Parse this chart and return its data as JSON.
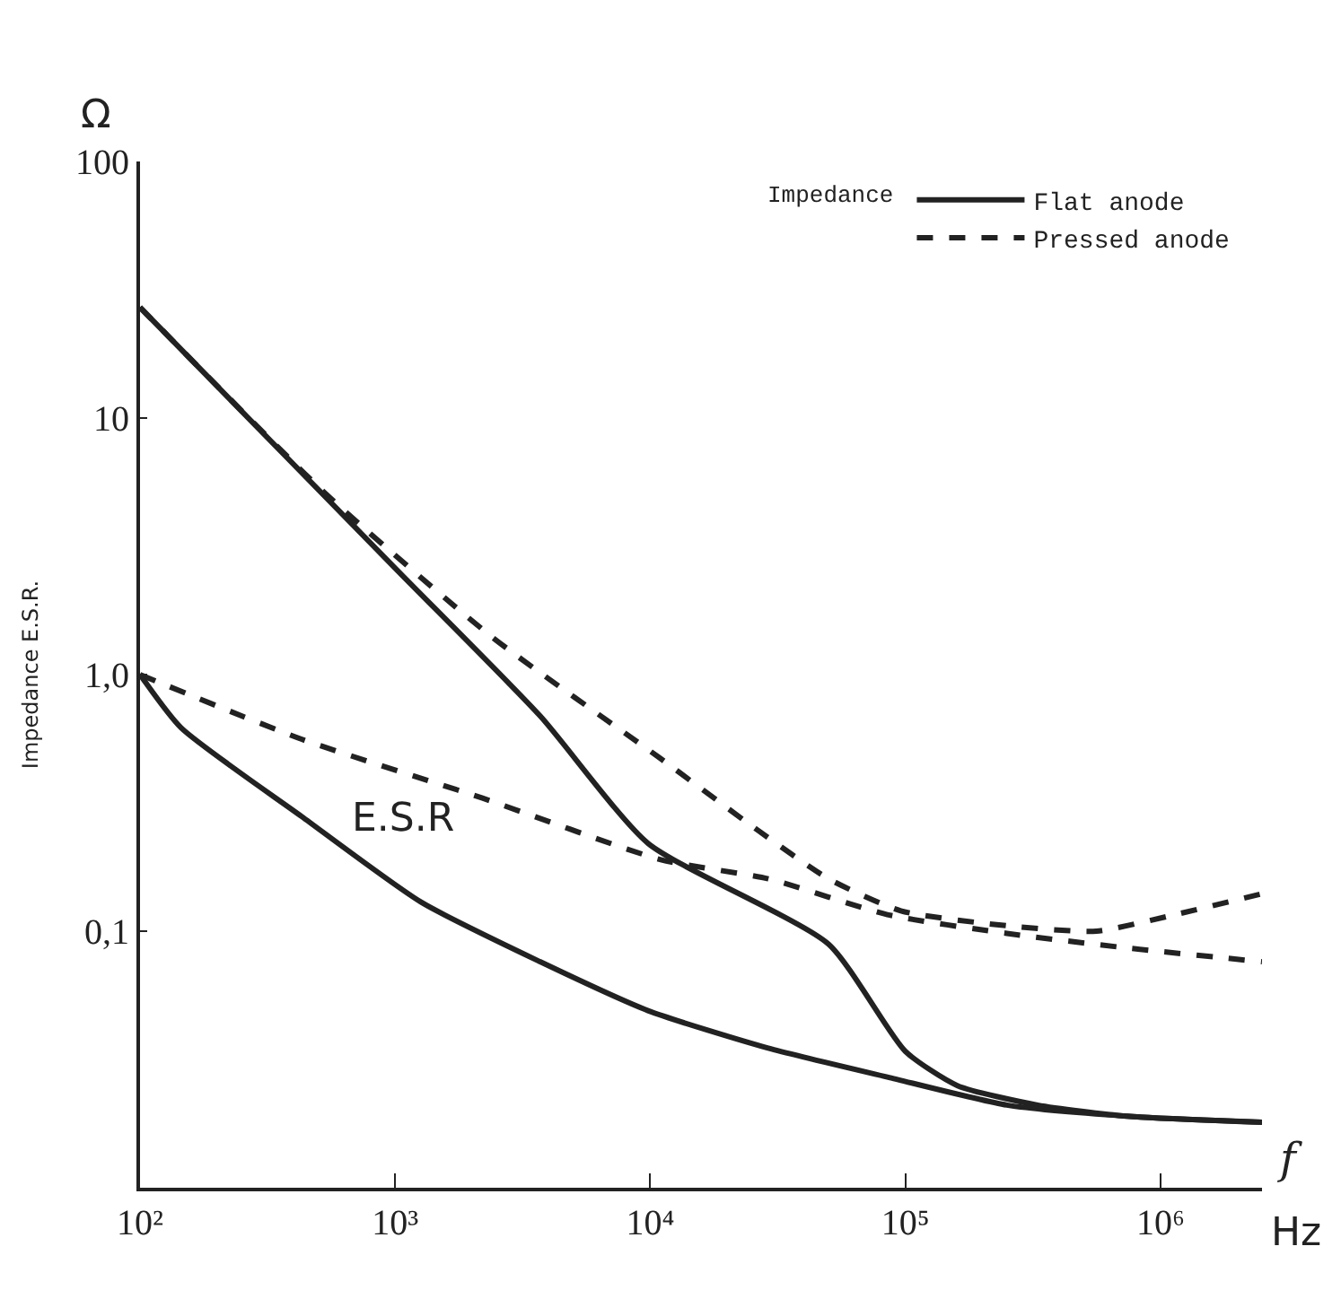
{
  "chart_data": {
    "type": "line",
    "xlabel": "f",
    "ylabel": "Impedance E.S.R.",
    "legend_title": "Impedance",
    "log": "xy",
    "legend": "top right",
    "xlim": [
      100,
      2500000
    ],
    "ylim": [
      0.01,
      100
    ],
    "xticks": [
      {
        "value": 100,
        "label": "10²"
      },
      {
        "value": 1000,
        "label": "10³"
      },
      {
        "value": 10000,
        "label": "10⁴"
      },
      {
        "value": 100000,
        "label": "10⁵"
      },
      {
        "value": 1000000,
        "label": "10⁶"
      }
    ],
    "yticks": [
      100,
      10,
      {
        "value": 1,
        "label": "1,0"
      },
      {
        "value": 0.1,
        "label": "0,1"
      }
    ],
    "series": [
      {
        "name": "Flat anode",
        "color": "#222222",
        "line_style": "solid",
        "x": [
          100,
          1000,
          3700,
          9800,
          50000,
          100000,
          160000,
          330000,
          740000,
          2500000
        ],
        "values": [
          27,
          2.6,
          0.69,
          0.22,
          0.089,
          0.034,
          0.025,
          0.021,
          0.019,
          0.018
        ]
      },
      {
        "name": "Pressed anode",
        "color": "#222222",
        "line_style": "dashed",
        "x": [
          100,
          531,
          2400,
          11000,
          26000,
          50000,
          96000,
          250000,
          560000,
          1100000,
          2500000
        ],
        "values": [
          27,
          5.1,
          1.4,
          0.47,
          0.25,
          0.16,
          0.12,
          0.105,
          0.1,
          0.115,
          0.14
        ]
      },
      {
        "color": "#222222",
        "line_style": "solid",
        "x": [
          100,
          145,
          430,
          1260,
          3700,
          9800,
          29000,
          85000,
          250000,
          740000,
          2500000
        ],
        "values": [
          1.0,
          0.62,
          0.28,
          0.13,
          0.076,
          0.049,
          0.035,
          0.027,
          0.021,
          0.019,
          0.018
        ]
      },
      {
        "color": "#222222",
        "line_style": "dashed",
        "x": [
          100,
          430,
          2200,
          11000,
          29000,
          85000,
          250000,
          740000,
          2500000
        ],
        "values": [
          1.0,
          0.56,
          0.33,
          0.19,
          0.16,
          0.116,
          0.098,
          0.086,
          0.076
        ]
      }
    ],
    "annotations": [
      "E.S.R",
      "Ω",
      "Hz"
    ]
  }
}
